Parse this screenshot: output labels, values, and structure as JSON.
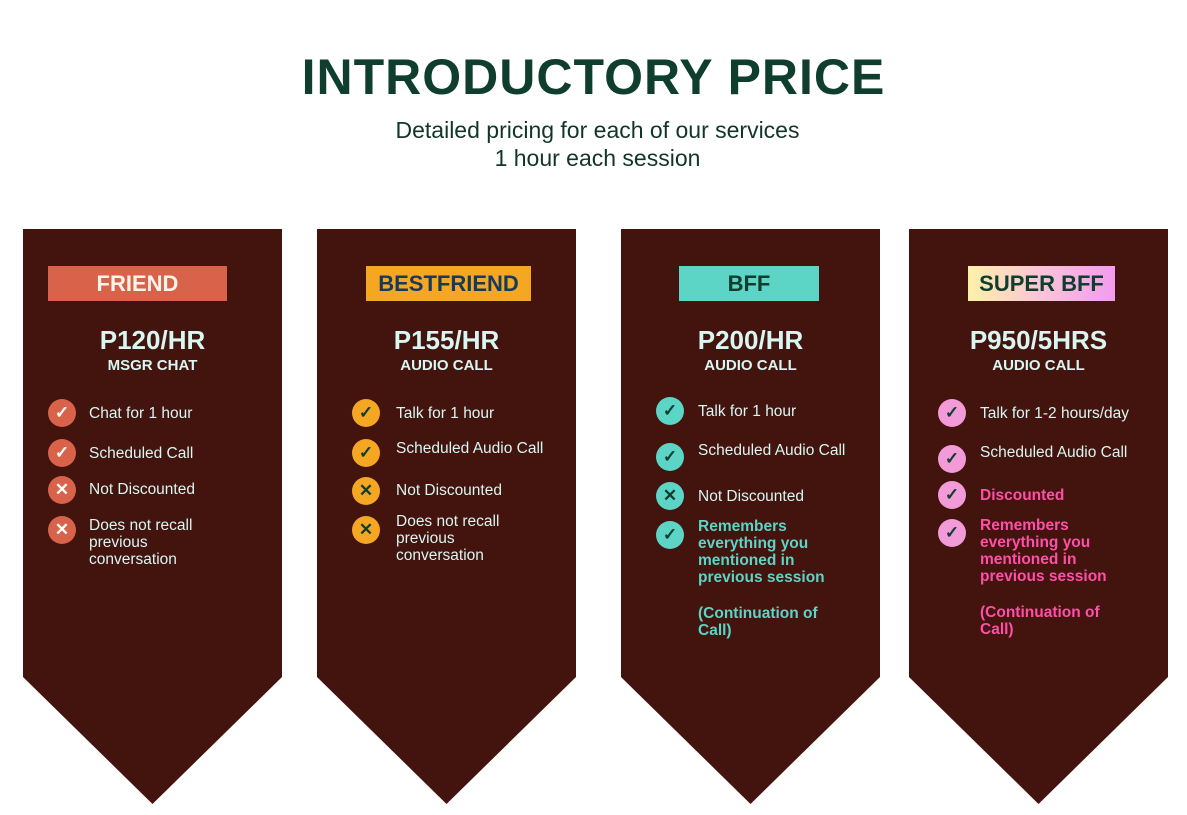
{
  "header": {
    "title": "INTRODUCTORY PRICE",
    "subtitle_line1": "Detailed pricing for each of our services",
    "subtitle_line2": "1 hour each session"
  },
  "colors": {
    "card_bg": "#43130e",
    "text": "#d8f6f2",
    "friend": "#d9634a",
    "bestfriend": "#f5a623",
    "bff": "#5cd4c6",
    "super_bff": "#f39bd8",
    "highlight_bff": "#5cd4c6",
    "highlight_super": "#ff4fa8"
  },
  "plans": [
    {
      "name": "FRIEND",
      "price": "P120/HR",
      "type": "MSGR CHAT",
      "features": [
        {
          "icon": "check-icon",
          "text": "Chat for 1 hour"
        },
        {
          "icon": "check-icon",
          "text": "Scheduled Call"
        },
        {
          "icon": "x-icon",
          "text": "Not Discounted"
        },
        {
          "icon": "x-icon",
          "text": "Does not recall previous conversation"
        }
      ]
    },
    {
      "name": "BESTFRIEND",
      "price": "P155/HR",
      "type": "AUDIO CALL",
      "features": [
        {
          "icon": "check-icon",
          "text": "Talk for 1 hour"
        },
        {
          "icon": "check-icon",
          "text": "Scheduled Audio Call"
        },
        {
          "icon": "x-icon",
          "text": "Not Discounted"
        },
        {
          "icon": "x-icon",
          "text": "Does not recall previous conversation"
        }
      ]
    },
    {
      "name": "BFF",
      "price": "P200/HR",
      "type": "AUDIO CALL",
      "features": [
        {
          "icon": "check-icon",
          "text": "Talk for 1 hour"
        },
        {
          "icon": "check-icon",
          "text": "Scheduled Audio Call"
        },
        {
          "icon": "x-icon",
          "text": "Not Discounted"
        },
        {
          "icon": "check-icon",
          "text": "Remembers everything you mentioned in previous session"
        }
      ],
      "note": "(Continuation of Call)"
    },
    {
      "name": "SUPER BFF",
      "price": "P950/5HRS",
      "type": "AUDIO CALL",
      "features": [
        {
          "icon": "check-icon",
          "text": "Talk for 1-2 hours/day"
        },
        {
          "icon": "check-icon",
          "text": "Scheduled Audio Call"
        },
        {
          "icon": "check-icon",
          "text": "Discounted"
        },
        {
          "icon": "check-icon",
          "text": "Remembers everything you mentioned in previous session"
        }
      ],
      "note": "(Continuation of Call)"
    }
  ]
}
